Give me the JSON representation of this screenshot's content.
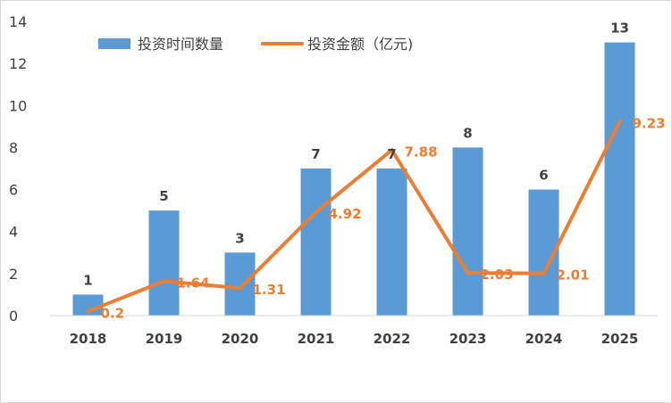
{
  "chart_data": {
    "type": "bar",
    "categories": [
      "2018",
      "2019",
      "2020",
      "2021",
      "2022",
      "2023",
      "2024",
      "2025"
    ],
    "series": [
      {
        "name": "投资时间数量",
        "type": "bar",
        "color": "#5b9bd5",
        "values": [
          1,
          5,
          3,
          7,
          7,
          8,
          6,
          13
        ]
      },
      {
        "name": "投资金额（亿元)",
        "type": "line",
        "color": "#ed7d31",
        "values": [
          0.2,
          1.64,
          1.31,
          4.92,
          7.88,
          2.03,
          2.01,
          9.23
        ]
      }
    ],
    "ylim": [
      0,
      14
    ],
    "yticks": [
      0,
      2,
      4,
      6,
      8,
      10,
      12,
      14
    ],
    "grid": false,
    "legend_position": "top"
  }
}
